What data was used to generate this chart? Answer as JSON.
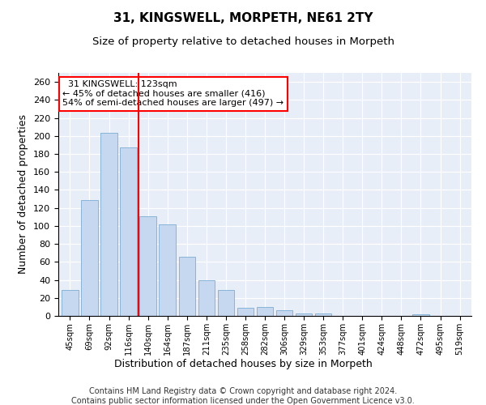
{
  "title1": "31, KINGSWELL, MORPETH, NE61 2TY",
  "title2": "Size of property relative to detached houses in Morpeth",
  "xlabel": "Distribution of detached houses by size in Morpeth",
  "ylabel": "Number of detached properties",
  "footer1": "Contains HM Land Registry data © Crown copyright and database right 2024.",
  "footer2": "Contains public sector information licensed under the Open Government Licence v3.0.",
  "categories": [
    "45sqm",
    "69sqm",
    "92sqm",
    "116sqm",
    "140sqm",
    "164sqm",
    "187sqm",
    "211sqm",
    "235sqm",
    "258sqm",
    "282sqm",
    "306sqm",
    "329sqm",
    "353sqm",
    "377sqm",
    "401sqm",
    "424sqm",
    "448sqm",
    "472sqm",
    "495sqm",
    "519sqm"
  ],
  "values": [
    29,
    129,
    203,
    187,
    111,
    102,
    66,
    40,
    29,
    9,
    10,
    6,
    3,
    3,
    0,
    0,
    0,
    0,
    2,
    0,
    0
  ],
  "bar_color": "#c5d8ef",
  "bar_edge_color": "#7aadd4",
  "vline_x": 3.5,
  "vline_color": "red",
  "annotation_text": "  31 KINGSWELL: 123sqm  \n← 45% of detached houses are smaller (416)\n54% of semi-detached houses are larger (497) →",
  "annotation_box_color": "white",
  "annotation_box_edge": "red",
  "ylim": [
    0,
    270
  ],
  "yticks": [
    0,
    20,
    40,
    60,
    80,
    100,
    120,
    140,
    160,
    180,
    200,
    220,
    240,
    260
  ],
  "plot_bg_color": "#e8eef8",
  "title1_fontsize": 11,
  "title2_fontsize": 9.5,
  "xlabel_fontsize": 9,
  "ylabel_fontsize": 9,
  "footer_fontsize": 7
}
